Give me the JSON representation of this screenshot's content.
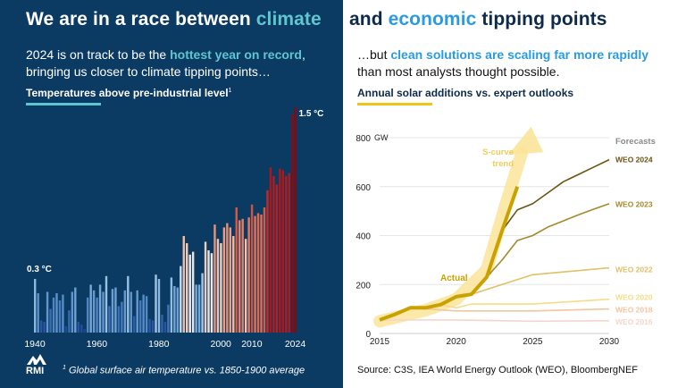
{
  "left_panel": {
    "title_part1": "We are in a race between ",
    "title_highlight": "climate",
    "subtitle_part1": "2024 is on track to be the ",
    "subtitle_highlight": "hottest year on record",
    "subtitle_part2": ",",
    "subtitle_line2": "bringing us closer to climate tipping points…",
    "chart_title": "Temperatures above pre-industrial level",
    "chart_title_sup": "1",
    "footnote_sup": "1",
    "footnote": " Global surface air temperature vs. 1850-1900 average",
    "logo_text": "RMI",
    "logo_icon": "mountain-logo-icon"
  },
  "right_panel": {
    "title_part1": "and ",
    "title_highlight": "economic",
    "title_part2": " tipping points",
    "subtitle_part1": "…but ",
    "subtitle_highlight": "clean solutions are scaling far more rapidly",
    "subtitle_line2": "than most analysts thought possible.",
    "chart_title": "Annual solar additions vs. expert outlooks",
    "source": "Source: C3S, IEA World Energy Outlook (WEO), BloombergNEF"
  },
  "colors": {
    "left_bg": "#0b3b63",
    "climate_accent": "#5ec6cf",
    "economic_accent": "#2a9be0",
    "solar_accent": "#f0c419",
    "actual_line": "#c9a100",
    "scurve_arrow": "#fbe49a"
  },
  "chart_data": [
    {
      "type": "bar",
      "title": "Temperatures above pre-industrial level",
      "ylabel": "°C",
      "annotations": [
        {
          "year": 1940,
          "label": "0.3 °C"
        },
        {
          "year": 2024,
          "label": "1.5 °C"
        }
      ],
      "x_tick_labels": [
        "1940",
        "1960",
        "1980",
        "2000",
        "2010",
        "2024"
      ],
      "x_ticks": [
        1940,
        1960,
        1980,
        2000,
        2010,
        2024
      ],
      "years_start": 1940,
      "values": [
        0.3,
        0.2,
        0.01,
        0.0,
        0.21,
        0.09,
        0.17,
        0.2,
        0.15,
        0.19,
        -0.03,
        0.08,
        0.21,
        0.24,
        0.0,
        -0.02,
        -0.05,
        0.17,
        0.26,
        0.22,
        0.17,
        0.26,
        0.21,
        0.32,
        0.11,
        0.23,
        0.24,
        0.11,
        0.14,
        0.22,
        0.32,
        0.21,
        0.04,
        0.22,
        0.15,
        0.19,
        0.18,
        0.02,
        0.01,
        0.33,
        0.3,
        0.05,
        0.0,
        0.12,
        0.31,
        0.25,
        0.24,
        0.39,
        0.6,
        0.55,
        0.47,
        0.49,
        0.26,
        0.26,
        0.34,
        0.56,
        0.5,
        0.48,
        0.68,
        0.58,
        0.55,
        0.66,
        0.69,
        0.66,
        0.6,
        0.8,
        0.71,
        0.72,
        0.58,
        0.73,
        0.82,
        0.74,
        0.76,
        0.75,
        0.8,
        0.92,
        1.08,
        1.02,
        0.96,
        1.07,
        1.06,
        1.02,
        1.04,
        1.45,
        1.5
      ],
      "ylim": [
        -0.075,
        1.55
      ],
      "color_scale": "blue (cool) to red (warm)"
    },
    {
      "type": "line",
      "title": "Annual solar additions vs. expert outlooks",
      "ylabel": "GW",
      "ylim": [
        0,
        800
      ],
      "y_ticks": [
        0,
        200,
        400,
        600,
        800
      ],
      "y_unit_label": "GW",
      "xlim": [
        2015,
        2030
      ],
      "x_ticks": [
        2015,
        2020,
        2025,
        2030
      ],
      "legend_header": "Forecasts",
      "series": [
        {
          "name": "Actual",
          "color": "#c9a100",
          "x": [
            2015,
            2016,
            2017,
            2018,
            2019,
            2020,
            2021,
            2022,
            2023,
            2024
          ],
          "y": [
            55,
            78,
            105,
            105,
            118,
            150,
            160,
            230,
            420,
            600
          ]
        },
        {
          "name": "WEO 2024",
          "color": "#6b5512",
          "x": [
            2023,
            2024,
            2025,
            2026,
            2027,
            2028,
            2029,
            2030
          ],
          "y": [
            420,
            505,
            530,
            575,
            620,
            650,
            680,
            710
          ]
        },
        {
          "name": "WEO 2023",
          "color": "#a5892a",
          "x": [
            2022,
            2023,
            2024,
            2025,
            2026,
            2027,
            2028,
            2029,
            2030
          ],
          "y": [
            230,
            300,
            380,
            400,
            435,
            460,
            485,
            508,
            530
          ]
        },
        {
          "name": "WEO 2022",
          "color": "#e0c068",
          "x": [
            2021,
            2025,
            2030
          ],
          "y": [
            160,
            240,
            268
          ]
        },
        {
          "name": "WEO 2020",
          "color": "#f5dc8a",
          "x": [
            2019,
            2020,
            2021,
            2025,
            2030
          ],
          "y": [
            118,
            105,
            120,
            120,
            140
          ]
        },
        {
          "name": "WEO 2018",
          "color": "#f2c5a0",
          "x": [
            2017,
            2020,
            2025,
            2030
          ],
          "y": [
            105,
            92,
            92,
            100
          ]
        },
        {
          "name": "WEO 2016",
          "color": "#f7d5cc",
          "x": [
            2015,
            2020,
            2025,
            2030
          ],
          "y": [
            55,
            55,
            50,
            52
          ]
        }
      ],
      "annotations": [
        {
          "text_line1": "S-curve",
          "text_line2": "trend",
          "color": "#f0cd5a"
        },
        {
          "text": "Actual",
          "color": "#c9a100"
        }
      ]
    }
  ]
}
